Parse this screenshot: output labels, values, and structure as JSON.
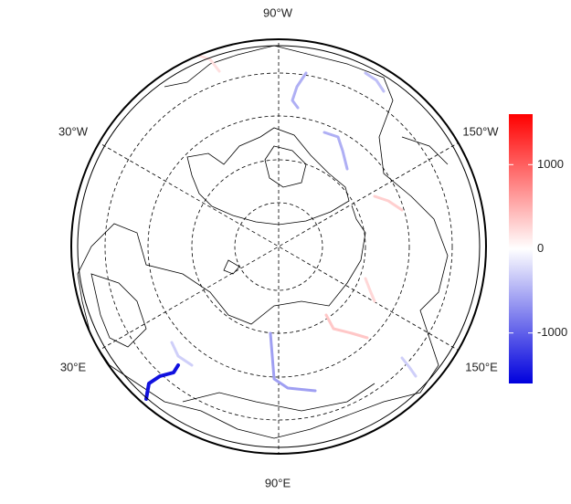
{
  "map": {
    "longitude_labels": [
      "90°W",
      "30°W",
      "150°W",
      "30°E",
      "150°E",
      "90°E"
    ],
    "colorbar": {
      "lim": [
        -1600,
        1600
      ],
      "ticks": [
        1000,
        0,
        -1000
      ],
      "colors": [
        "#0000dd",
        "#ffffff",
        "#ff0000"
      ]
    },
    "river_values": [
      -1500,
      -600,
      -500,
      -500,
      -400,
      350,
      300,
      200,
      -300,
      -300,
      250
    ]
  }
}
